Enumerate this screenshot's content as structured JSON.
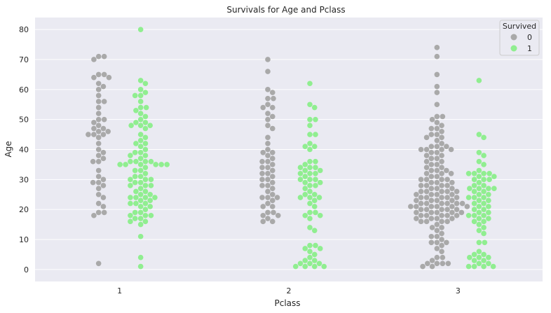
{
  "chart_data": {
    "type": "scatter",
    "subtype": "swarm",
    "title": "Survivals for Age and Pclass",
    "xlabel": "Pclass",
    "ylabel": "Age",
    "categories": [
      "1",
      "2",
      "3"
    ],
    "ylim": [
      -4,
      84
    ],
    "yticks": [
      0,
      10,
      20,
      30,
      40,
      50,
      60,
      70,
      80
    ],
    "grid": true,
    "legend": {
      "title": "Survived",
      "placement": "top-right"
    },
    "series": [
      {
        "name": "0",
        "color": "#a9a9a9",
        "groups": [
          {
            "category": "1",
            "ages": [
              71,
              71,
              70,
              65,
              65,
              64,
              64,
              62,
              61,
              60,
              58,
              56,
              56,
              54,
              52,
              50,
              50,
              49,
              48,
              47,
              47,
              46,
              46,
              45,
              45,
              45,
              44,
              42,
              40,
              39,
              38,
              37,
              36,
              36,
              33,
              31,
              30,
              29,
              29,
              28,
              27,
              25,
              24,
              22,
              21,
              19,
              19,
              18,
              2
            ]
          },
          {
            "category": "2",
            "ages": [
              70,
              66,
              60,
              59,
              57,
              57,
              55,
              54,
              54,
              52,
              51,
              50,
              48,
              47,
              44,
              42,
              40,
              39,
              39,
              38,
              37,
              36,
              36,
              35,
              34,
              34,
              33,
              32,
              32,
              31,
              30,
              30,
              29,
              28,
              28,
              27,
              26,
              25,
              24,
              24,
              24,
              23,
              22,
              21,
              21,
              19,
              19,
              18,
              18,
              17,
              16,
              16
            ]
          },
          {
            "category": "3",
            "ages": [
              74,
              71,
              65,
              61,
              59,
              55,
              51,
              51,
              50,
              49,
              48,
              47,
              47,
              46,
              45,
              45,
              44,
              44,
              43,
              42,
              41,
              41,
              41,
              40,
              40,
              40,
              40,
              39,
              39,
              38,
              38,
              37,
              37,
              36,
              36,
              35,
              35,
              34,
              34,
              33,
              33,
              33,
              32,
              32,
              32,
              31,
              31,
              30,
              30,
              30,
              30,
              29,
              29,
              29,
              28,
              28,
              28,
              28,
              27,
              27,
              27,
              26,
              26,
              26,
              26,
              26,
              25,
              25,
              25,
              25,
              24,
              24,
              24,
              24,
              24,
              23,
              23,
              23,
              23,
              22,
              22,
              22,
              22,
              22,
              22,
              21,
              21,
              21,
              21,
              21,
              21,
              20,
              20,
              20,
              20,
              20,
              19,
              19,
              19,
              19,
              19,
              18,
              18,
              18,
              18,
              18,
              17,
              17,
              17,
              17,
              16,
              16,
              16,
              16,
              15,
              14,
              14,
              13,
              12,
              11,
              11,
              10,
              9,
              9,
              9,
              8,
              7,
              6,
              4,
              4,
              3,
              2,
              2,
              2,
              2,
              1,
              1
            ]
          }
        ]
      },
      {
        "name": "1",
        "color": "#90ee90",
        "groups": [
          {
            "category": "1",
            "ages": [
              80,
              63,
              62,
              60,
              59,
              58,
              58,
              56,
              54,
              54,
              53,
              52,
              51,
              50,
              49,
              49,
              48,
              48,
              48,
              47,
              45,
              44,
              43,
              42,
              42,
              41,
              40,
              39,
              39,
              38,
              38,
              37,
              36,
              36,
              36,
              36,
              35,
              35,
              35,
              35,
              35,
              35,
              34,
              33,
              33,
              32,
              31,
              31,
              30,
              30,
              30,
              29,
              29,
              28,
              28,
              28,
              27,
              26,
              26,
              25,
              25,
              24,
              24,
              24,
              24,
              23,
              23,
              22,
              22,
              22,
              21,
              21,
              20,
              19,
              19,
              18,
              18,
              18,
              17,
              17,
              16,
              16,
              15,
              11,
              4,
              1
            ]
          },
          {
            "category": "2",
            "ages": [
              62,
              55,
              54,
              50,
              50,
              48,
              45,
              45,
              42,
              41,
              41,
              40,
              36,
              36,
              35,
              34,
              34,
              34,
              33,
              33,
              32,
              32,
              32,
              31,
              30,
              30,
              30,
              29,
              29,
              28,
              28,
              27,
              26,
              25,
              25,
              24,
              24,
              24,
              23,
              22,
              21,
              19,
              19,
              18,
              18,
              17,
              14,
              13,
              8,
              8,
              7,
              7,
              6,
              5,
              4,
              3,
              3,
              2,
              2,
              2,
              1,
              1,
              1,
              1
            ]
          },
          {
            "category": "3",
            "ages": [
              63,
              45,
              44,
              39,
              38,
              36,
              35,
              33,
              32,
              32,
              32,
              32,
              31,
              31,
              30,
              30,
              30,
              29,
              28,
              28,
              27,
              27,
              27,
              27,
              26,
              26,
              25,
              25,
              24,
              24,
              24,
              23,
              23,
              22,
              22,
              21,
              21,
              20,
              20,
              19,
              19,
              18,
              18,
              18,
              17,
              17,
              16,
              16,
              15,
              14,
              13,
              12,
              9,
              9,
              6,
              5,
              5,
              4,
              4,
              4,
              3,
              3,
              2,
              2,
              1,
              1,
              1,
              1
            ]
          }
        ]
      }
    ]
  }
}
